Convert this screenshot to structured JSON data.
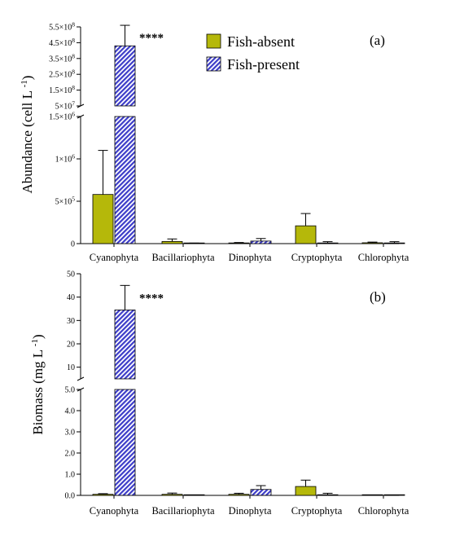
{
  "colors": {
    "absent": "#b5b80a",
    "present": "#3c3cc8"
  },
  "legend": [
    "Fish-absent",
    "Fish-present"
  ],
  "chart_data": [
    {
      "type": "bar",
      "panel_label": "(a)",
      "ylabel": "Abundance (cell L",
      "ylabel_exp": "-1",
      "ylabel_close": ")",
      "categories": [
        "Cyanophyta",
        "Bacillariophyta",
        "Dinophyta",
        "Cryptophyta",
        "Chlorophyta"
      ],
      "axis_break": true,
      "lower_range": [
        0,
        1500000
      ],
      "upper_range": [
        50000000,
        550000000
      ],
      "lower_ticks": [
        {
          "v": 0,
          "m": "0"
        },
        {
          "v": 500000,
          "m": "5×10",
          "e": "5"
        },
        {
          "v": 1000000,
          "m": "1×10",
          "e": "6"
        },
        {
          "v": 1500000,
          "m": "1.5×10",
          "e": "6"
        }
      ],
      "upper_ticks": [
        {
          "v": 50000000,
          "m": "5×10",
          "e": "7"
        },
        {
          "v": 150000000,
          "m": "1.5×10",
          "e": "8"
        },
        {
          "v": 250000000,
          "m": "2.5×10",
          "e": "8"
        },
        {
          "v": 350000000,
          "m": "3.5×10",
          "e": "8"
        },
        {
          "v": 450000000,
          "m": "4.5×10",
          "e": "8"
        },
        {
          "v": 550000000,
          "m": "5.5×10",
          "e": "8"
        }
      ],
      "series": [
        {
          "name": "Fish-absent",
          "values": [
            580000,
            25000,
            8000,
            210000,
            10000
          ],
          "errors": [
            520000,
            30000,
            5000,
            145000,
            8000
          ]
        },
        {
          "name": "Fish-present",
          "values": [
            430000000,
            3000,
            30000,
            8000,
            8000
          ],
          "errors": [
            130000000,
            3000,
            30000,
            15000,
            15000
          ]
        }
      ],
      "annotation": {
        "text": "****",
        "category": "Cyanophyta"
      }
    },
    {
      "type": "bar",
      "panel_label": "(b)",
      "ylabel": "Biomass (mg L",
      "ylabel_exp": "-1",
      "ylabel_close": ")",
      "categories": [
        "Cyanophyta",
        "Bacillariophyta",
        "Dinophyta",
        "Cryptophyta",
        "Chlorophyta"
      ],
      "axis_break": true,
      "lower_range": [
        0,
        5.0
      ],
      "upper_range": [
        5,
        50
      ],
      "lower_ticks": [
        {
          "v": 0,
          "m": "0.0"
        },
        {
          "v": 1,
          "m": "1.0"
        },
        {
          "v": 2,
          "m": "2.0"
        },
        {
          "v": 3,
          "m": "3.0"
        },
        {
          "v": 4,
          "m": "4.0"
        },
        {
          "v": 5,
          "m": "5.0"
        }
      ],
      "upper_ticks": [
        {
          "v": 10,
          "m": "10"
        },
        {
          "v": 20,
          "m": "20"
        },
        {
          "v": 30,
          "m": "30"
        },
        {
          "v": 40,
          "m": "40"
        },
        {
          "v": 50,
          "m": "50"
        }
      ],
      "series": [
        {
          "name": "Fish-absent",
          "values": [
            0.05,
            0.05,
            0.05,
            0.42,
            0.005
          ],
          "errors": [
            0.03,
            0.06,
            0.05,
            0.3,
            0.003
          ]
        },
        {
          "name": "Fish-present",
          "values": [
            34.5,
            0.005,
            0.28,
            0.03,
            0.005
          ],
          "errors": [
            10.5,
            0.003,
            0.18,
            0.07,
            0.003
          ]
        }
      ],
      "annotation": {
        "text": "****",
        "category": "Cyanophyta"
      }
    }
  ]
}
